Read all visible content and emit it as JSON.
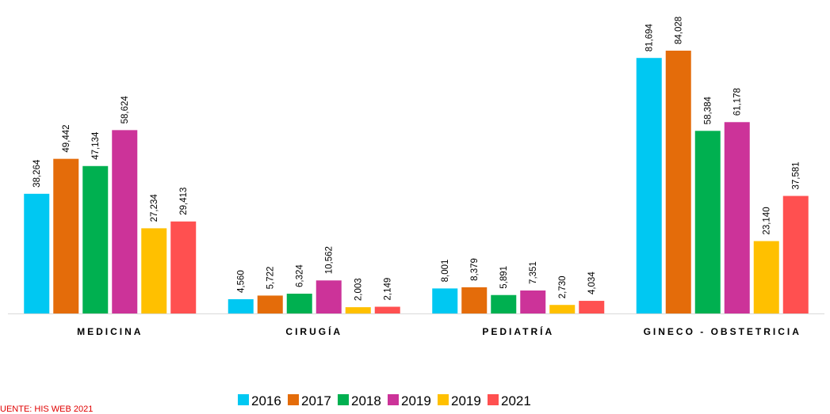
{
  "chart_data": {
    "type": "bar",
    "categories": [
      "MEDICINA",
      "CIRUGÍA",
      "PEDIATRÍA",
      "GINECO - OBSTETRICIA"
    ],
    "series": [
      {
        "name": "2016",
        "color": "#00c8f2",
        "values": [
          38264,
          4560,
          8001,
          81694
        ],
        "value_labels": [
          "38,264",
          "4,560",
          "8,001",
          "81,694"
        ]
      },
      {
        "name": "2017",
        "color": "#e46c0a",
        "values": [
          49442,
          5722,
          8379,
          84028
        ],
        "value_labels": [
          "49,442",
          "5,722",
          "8,379",
          "84,028"
        ]
      },
      {
        "name": "2018",
        "color": "#00b050",
        "values": [
          47134,
          6324,
          5891,
          58384
        ],
        "value_labels": [
          "47,134",
          "6,324",
          "5,891",
          "58,384"
        ]
      },
      {
        "name": "2019",
        "color": "#cc3399",
        "values": [
          58624,
          10562,
          7351,
          61178
        ],
        "value_labels": [
          "58,624",
          "10,562",
          "7,351",
          "61,178"
        ]
      },
      {
        "name": "2019",
        "color": "#ffc000",
        "values": [
          27234,
          2003,
          2730,
          23140
        ],
        "value_labels": [
          "27,234",
          "2,003",
          "2,730",
          "23,140"
        ]
      },
      {
        "name": "2021",
        "color": "#ff5050",
        "values": [
          29413,
          2149,
          4034,
          37581
        ],
        "value_labels": [
          "29,413",
          "2,149",
          "4,034",
          "37,581"
        ]
      }
    ],
    "ylim": [
      0,
      90000
    ],
    "source": "UENTE: HIS WEB 2021"
  }
}
